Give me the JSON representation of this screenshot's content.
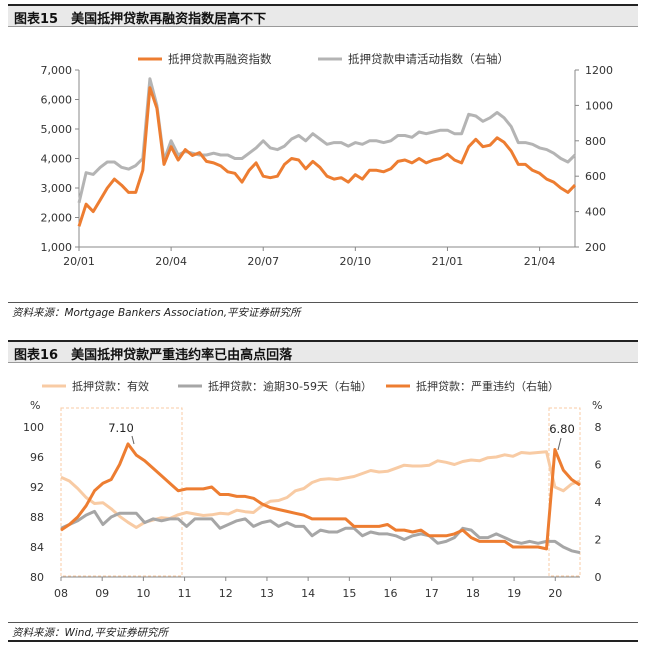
{
  "figures": [
    {
      "title": "图表15　美国抵押贷款再融资指数居高不下",
      "source": "资料来源：Mortgage Bankers Association,平安证券研究所"
    },
    {
      "title": "图表16　美国抵押贷款严重违约率已由高点回落",
      "source": "资料来源：Wind,平安证券研究所"
    }
  ],
  "colors": {
    "orange": "#ed7d31",
    "gray": "#b4b4b4",
    "light_orange": "#f8cba4",
    "mid_gray": "#a6a6a6"
  },
  "chart_data": [
    {
      "type": "line",
      "title": "图表15　美国抵押贷款再融资指数居高不下",
      "x_ticks": [
        "20/01",
        "20/04",
        "20/07",
        "20/10",
        "21/01",
        "21/04"
      ],
      "y_left": {
        "min": 1000,
        "max": 7000,
        "ticks": [
          "1,000",
          "2,000",
          "3,000",
          "4,000",
          "5,000",
          "6,000",
          "7,000"
        ]
      },
      "y_right": {
        "min": 200,
        "max": 1200,
        "ticks": [
          "200",
          "400",
          "600",
          "800",
          "1000",
          "1200"
        ]
      },
      "series": [
        {
          "name": "抵押贷款再融资指数",
          "axis": "left",
          "color": "#ed7d31",
          "values": [
            1700,
            2450,
            2200,
            2600,
            3000,
            3300,
            3100,
            2850,
            2850,
            3600,
            6400,
            5700,
            3800,
            4400,
            3950,
            4300,
            4100,
            4200,
            3900,
            3850,
            3750,
            3550,
            3500,
            3200,
            3600,
            3850,
            3400,
            3350,
            3400,
            3800,
            4000,
            3950,
            3650,
            3900,
            3700,
            3400,
            3300,
            3350,
            3200,
            3450,
            3300,
            3600,
            3600,
            3550,
            3650,
            3900,
            3950,
            3850,
            4000,
            3850,
            3950,
            4000,
            4150,
            3950,
            3850,
            4400,
            4650,
            4400,
            4450,
            4700,
            4550,
            4250,
            3800,
            3800,
            3600,
            3500,
            3300,
            3200,
            3000,
            2850,
            3100
          ]
        },
        {
          "name": "抵押贷款申请活动指数（右轴）",
          "axis": "right",
          "color": "#b4b4b4",
          "values": [
            450,
            620,
            610,
            650,
            680,
            680,
            650,
            640,
            660,
            700,
            1150,
            1000,
            690,
            800,
            720,
            740,
            730,
            720,
            720,
            730,
            720,
            720,
            700,
            700,
            730,
            760,
            800,
            760,
            750,
            770,
            810,
            830,
            800,
            840,
            810,
            780,
            790,
            790,
            770,
            790,
            780,
            800,
            800,
            790,
            800,
            830,
            830,
            820,
            850,
            840,
            850,
            860,
            860,
            840,
            840,
            950,
            940,
            910,
            930,
            960,
            930,
            880,
            790,
            790,
            780,
            760,
            750,
            730,
            700,
            680,
            720
          ]
        }
      ]
    },
    {
      "type": "line",
      "title": "图表16　美国抵押贷款严重违约率已由高点回落",
      "x_ticks": [
        "08",
        "09",
        "10",
        "11",
        "12",
        "13",
        "14",
        "15",
        "16",
        "17",
        "18",
        "19",
        "20"
      ],
      "y_left": {
        "unit": "%",
        "min": 80,
        "max": 100,
        "ticks": [
          "80",
          "84",
          "88",
          "92",
          "96",
          "100"
        ]
      },
      "y_right": {
        "unit": "%",
        "min": 0,
        "max": 8,
        "ticks": [
          "0",
          "2",
          "4",
          "6",
          "8"
        ]
      },
      "annotations": [
        "7.10",
        "6.80"
      ],
      "series": [
        {
          "name": "抵押贷款：有效",
          "axis": "left",
          "color": "#f8cba4",
          "values": [
            93.3,
            92.8,
            91.8,
            90.6,
            89.8,
            89.9,
            89.1,
            88.1,
            87.3,
            86.6,
            87.3,
            87.6,
            87.9,
            87.8,
            88.3,
            88.6,
            88.4,
            88.2,
            88.3,
            88.5,
            88.4,
            88.9,
            88.7,
            88.6,
            89.5,
            90.1,
            90.2,
            90.6,
            91.5,
            91.8,
            92.6,
            93.0,
            93.1,
            93.0,
            93.2,
            93.4,
            93.8,
            94.2,
            94.0,
            94.1,
            94.5,
            94.9,
            94.8,
            94.8,
            94.9,
            95.5,
            95.3,
            95.0,
            95.4,
            95.6,
            95.5,
            95.9,
            96.0,
            96.3,
            96.1,
            96.6,
            96.5,
            96.6,
            96.7,
            92.0,
            91.5,
            92.4,
            92.8
          ]
        },
        {
          "name": "抵押贷款：逾期30-59天（右轴）",
          "axis": "right",
          "color": "#a6a6a6",
          "values": [
            2.6,
            2.8,
            3.0,
            3.3,
            3.5,
            2.8,
            3.2,
            3.4,
            3.4,
            3.4,
            2.9,
            3.1,
            3.0,
            3.1,
            3.1,
            2.7,
            3.1,
            3.1,
            3.1,
            2.6,
            2.8,
            3.0,
            3.1,
            2.7,
            2.9,
            3.0,
            2.7,
            2.9,
            2.7,
            2.7,
            2.2,
            2.5,
            2.4,
            2.4,
            2.6,
            2.6,
            2.2,
            2.4,
            2.3,
            2.3,
            2.2,
            2.0,
            2.2,
            2.3,
            2.2,
            1.8,
            1.9,
            2.1,
            2.6,
            2.5,
            2.1,
            2.1,
            2.3,
            2.1,
            1.9,
            1.8,
            1.9,
            1.8,
            1.9,
            1.9,
            1.6,
            1.4,
            1.3
          ]
        },
        {
          "name": "抵押贷款：严重违约（右轴）",
          "axis": "right",
          "color": "#ed7d31",
          "values": [
            2.5,
            2.8,
            3.2,
            3.8,
            4.6,
            5.0,
            5.2,
            6.0,
            7.1,
            6.5,
            6.2,
            5.8,
            5.4,
            5.0,
            4.6,
            4.7,
            4.7,
            4.7,
            4.8,
            4.4,
            4.4,
            4.3,
            4.3,
            4.2,
            3.9,
            3.7,
            3.6,
            3.5,
            3.4,
            3.3,
            3.1,
            3.1,
            3.1,
            3.1,
            3.1,
            2.7,
            2.7,
            2.7,
            2.7,
            2.8,
            2.5,
            2.5,
            2.4,
            2.5,
            2.2,
            2.2,
            2.2,
            2.3,
            2.5,
            2.1,
            1.9,
            1.9,
            1.9,
            1.9,
            1.6,
            1.6,
            1.6,
            1.6,
            1.5,
            6.8,
            5.7,
            5.2,
            4.9
          ]
        }
      ]
    }
  ]
}
